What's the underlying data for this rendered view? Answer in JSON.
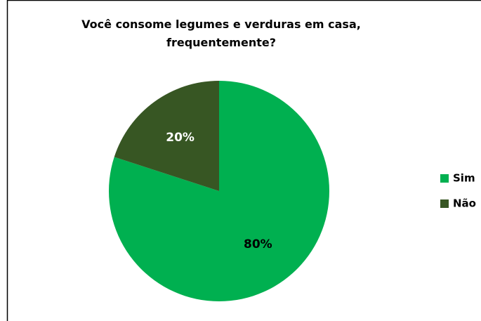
{
  "chart_data": {
    "type": "pie",
    "title": "Você consome legumes e verduras em casa, frequentemente?",
    "categories": [
      "Sim",
      "Não"
    ],
    "values": [
      80,
      20
    ],
    "value_labels": [
      "80%",
      "20%"
    ],
    "colors": [
      "#00b050",
      "#375623"
    ],
    "legend": "right"
  }
}
